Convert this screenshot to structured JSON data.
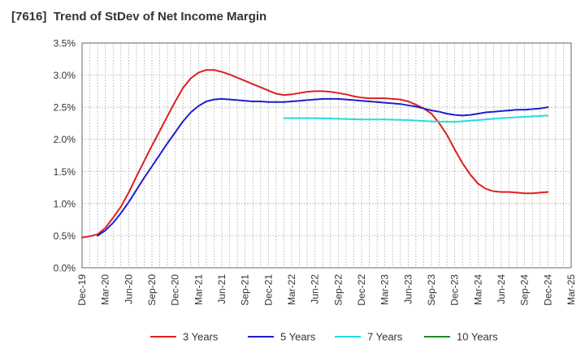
{
  "chart_data": {
    "type": "line",
    "title": "[7616]  Trend of StDev of Net Income Margin",
    "xlabel": "",
    "ylabel": "",
    "y_ticks": [
      "0.0%",
      "0.5%",
      "1.0%",
      "1.5%",
      "2.0%",
      "2.5%",
      "3.0%",
      "3.5%"
    ],
    "ylim": [
      0,
      3.5
    ],
    "x_ticks": [
      "Dec-19",
      "Mar-20",
      "Jun-20",
      "Sep-20",
      "Dec-20",
      "Mar-21",
      "Jun-21",
      "Sep-21",
      "Dec-21",
      "Mar-22",
      "Jun-22",
      "Sep-22",
      "Dec-22",
      "Mar-23",
      "Jun-23",
      "Sep-23",
      "Dec-23",
      "Mar-24",
      "Jun-24",
      "Sep-24",
      "Dec-24",
      "Mar-25"
    ],
    "grid": "dotted",
    "legend": "bottom",
    "series": [
      {
        "name": "3 Years",
        "color": "#dd1f1f",
        "points": [
          [
            "Dec-19",
            0.47
          ],
          [
            "Jan-20",
            0.49
          ],
          [
            "Feb-20",
            0.52
          ],
          [
            "Mar-20",
            0.62
          ],
          [
            "Apr-20",
            0.78
          ],
          [
            "May-20",
            0.95
          ],
          [
            "Jun-20",
            1.17
          ],
          [
            "Jul-20",
            1.42
          ],
          [
            "Aug-20",
            1.66
          ],
          [
            "Sep-20",
            1.9
          ],
          [
            "Oct-20",
            2.13
          ],
          [
            "Nov-20",
            2.36
          ],
          [
            "Dec-20",
            2.59
          ],
          [
            "Jan-21",
            2.8
          ],
          [
            "Feb-21",
            2.95
          ],
          [
            "Mar-21",
            3.04
          ],
          [
            "Apr-21",
            3.08
          ],
          [
            "May-21",
            3.08
          ],
          [
            "Jun-21",
            3.05
          ],
          [
            "Jul-21",
            3.01
          ],
          [
            "Aug-21",
            2.96
          ],
          [
            "Sep-21",
            2.91
          ],
          [
            "Oct-21",
            2.86
          ],
          [
            "Nov-21",
            2.81
          ],
          [
            "Dec-21",
            2.76
          ],
          [
            "Jan-22",
            2.71
          ],
          [
            "Feb-22",
            2.69
          ],
          [
            "Mar-22",
            2.7
          ],
          [
            "Apr-22",
            2.72
          ],
          [
            "May-22",
            2.74
          ],
          [
            "Jun-22",
            2.75
          ],
          [
            "Jul-22",
            2.75
          ],
          [
            "Aug-22",
            2.74
          ],
          [
            "Sep-22",
            2.72
          ],
          [
            "Oct-22",
            2.7
          ],
          [
            "Nov-22",
            2.67
          ],
          [
            "Dec-22",
            2.65
          ],
          [
            "Jan-23",
            2.64
          ],
          [
            "Feb-23",
            2.64
          ],
          [
            "Mar-23",
            2.64
          ],
          [
            "Apr-23",
            2.63
          ],
          [
            "May-23",
            2.62
          ],
          [
            "Jun-23",
            2.59
          ],
          [
            "Jul-23",
            2.54
          ],
          [
            "Aug-23",
            2.48
          ],
          [
            "Sep-23",
            2.4
          ],
          [
            "Oct-23",
            2.25
          ],
          [
            "Nov-23",
            2.07
          ],
          [
            "Dec-23",
            1.84
          ],
          [
            "Jan-24",
            1.63
          ],
          [
            "Feb-24",
            1.45
          ],
          [
            "Mar-24",
            1.31
          ],
          [
            "Apr-24",
            1.23
          ],
          [
            "May-24",
            1.19
          ],
          [
            "Jun-24",
            1.18
          ],
          [
            "Jul-24",
            1.18
          ],
          [
            "Aug-24",
            1.17
          ],
          [
            "Sep-24",
            1.16
          ],
          [
            "Oct-24",
            1.16
          ],
          [
            "Nov-24",
            1.17
          ],
          [
            "Dec-24",
            1.18
          ]
        ]
      },
      {
        "name": "5 Years",
        "color": "#1f1fcc",
        "points": [
          [
            "Feb-20",
            0.5
          ],
          [
            "Mar-20",
            0.58
          ],
          [
            "Apr-20",
            0.7
          ],
          [
            "May-20",
            0.85
          ],
          [
            "Jun-20",
            1.02
          ],
          [
            "Jul-20",
            1.21
          ],
          [
            "Aug-20",
            1.4
          ],
          [
            "Sep-20",
            1.58
          ],
          [
            "Oct-20",
            1.76
          ],
          [
            "Nov-20",
            1.94
          ],
          [
            "Dec-20",
            2.11
          ],
          [
            "Jan-21",
            2.28
          ],
          [
            "Feb-21",
            2.42
          ],
          [
            "Mar-21",
            2.52
          ],
          [
            "Apr-21",
            2.59
          ],
          [
            "May-21",
            2.62
          ],
          [
            "Jun-21",
            2.63
          ],
          [
            "Jul-21",
            2.62
          ],
          [
            "Aug-21",
            2.61
          ],
          [
            "Sep-21",
            2.6
          ],
          [
            "Oct-21",
            2.59
          ],
          [
            "Nov-21",
            2.59
          ],
          [
            "Dec-21",
            2.58
          ],
          [
            "Jan-22",
            2.58
          ],
          [
            "Feb-22",
            2.58
          ],
          [
            "Mar-22",
            2.59
          ],
          [
            "Apr-22",
            2.6
          ],
          [
            "May-22",
            2.61
          ],
          [
            "Jun-22",
            2.62
          ],
          [
            "Jul-22",
            2.63
          ],
          [
            "Aug-22",
            2.63
          ],
          [
            "Sep-22",
            2.63
          ],
          [
            "Oct-22",
            2.62
          ],
          [
            "Nov-22",
            2.61
          ],
          [
            "Dec-22",
            2.6
          ],
          [
            "Jan-23",
            2.59
          ],
          [
            "Feb-23",
            2.58
          ],
          [
            "Mar-23",
            2.57
          ],
          [
            "Apr-23",
            2.56
          ],
          [
            "May-23",
            2.55
          ],
          [
            "Jun-23",
            2.53
          ],
          [
            "Jul-23",
            2.51
          ],
          [
            "Aug-23",
            2.48
          ],
          [
            "Sep-23",
            2.45
          ],
          [
            "Oct-23",
            2.43
          ],
          [
            "Nov-23",
            2.4
          ],
          [
            "Dec-23",
            2.38
          ],
          [
            "Jan-24",
            2.37
          ],
          [
            "Feb-24",
            2.38
          ],
          [
            "Mar-24",
            2.4
          ],
          [
            "Apr-24",
            2.42
          ],
          [
            "May-24",
            2.43
          ],
          [
            "Jun-24",
            2.44
          ],
          [
            "Jul-24",
            2.45
          ],
          [
            "Aug-24",
            2.46
          ],
          [
            "Sep-24",
            2.46
          ],
          [
            "Oct-24",
            2.47
          ],
          [
            "Nov-24",
            2.48
          ],
          [
            "Dec-24",
            2.5
          ]
        ]
      },
      {
        "name": "7 Years",
        "color": "#22dddd",
        "points": [
          [
            "Feb-22",
            2.33
          ],
          [
            "Mar-22",
            2.33
          ],
          [
            "Jun-22",
            2.33
          ],
          [
            "Sep-22",
            2.32
          ],
          [
            "Dec-22",
            2.31
          ],
          [
            "Mar-23",
            2.31
          ],
          [
            "Jun-23",
            2.3
          ],
          [
            "Sep-23",
            2.28
          ],
          [
            "Dec-23",
            2.27
          ],
          [
            "Mar-24",
            2.3
          ],
          [
            "Jun-24",
            2.33
          ],
          [
            "Sep-24",
            2.35
          ],
          [
            "Dec-24",
            2.37
          ]
        ]
      },
      {
        "name": "10 Years",
        "color": "#1f8a1f",
        "points": []
      }
    ]
  }
}
